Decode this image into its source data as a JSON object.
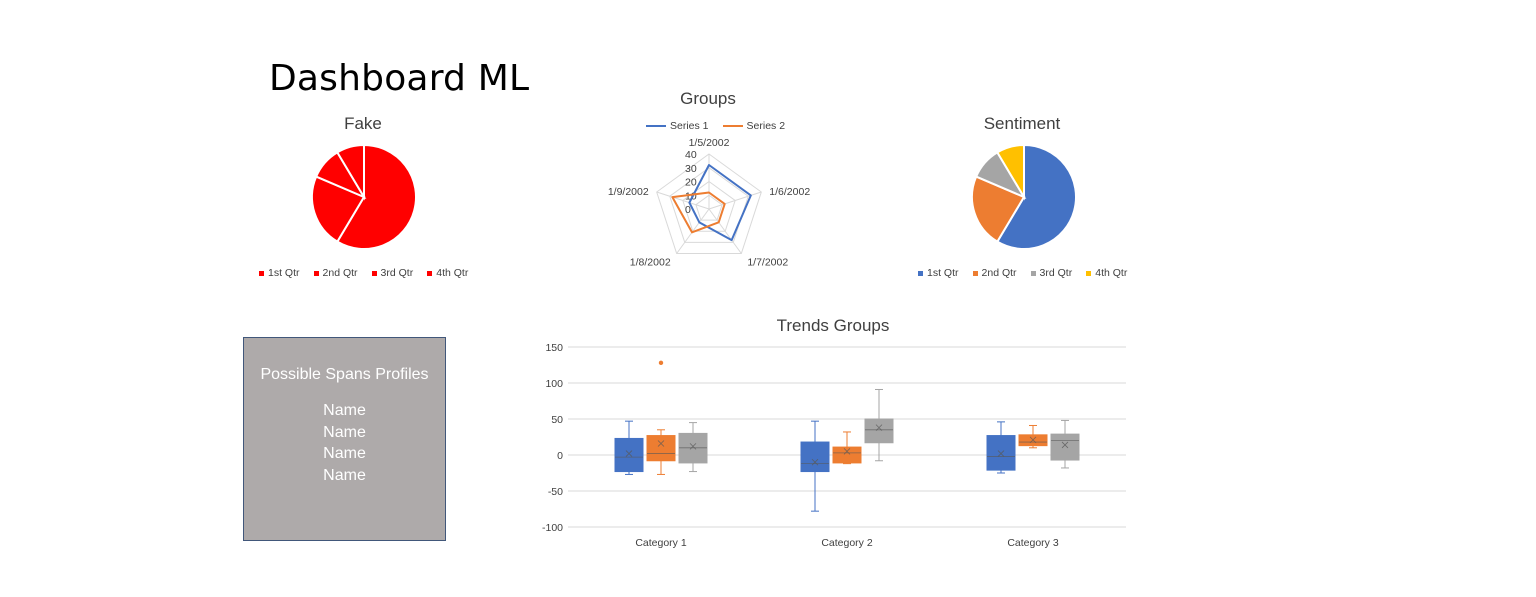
{
  "page": {
    "title": "Dashboard ML"
  },
  "profiles_panel": {
    "heading": "Possible Spans Profiles",
    "names": [
      "Name",
      "Name",
      "Name",
      "Name"
    ]
  },
  "colors": {
    "blue": "#4472c4",
    "orange": "#ed7d31",
    "gray": "#a5a5a5",
    "yellow": "#ffc000",
    "red": "#ff0000"
  },
  "chart_data": [
    {
      "id": "fake",
      "type": "pie",
      "title": "Fake",
      "categories": [
        "1st Qtr",
        "2nd Qtr",
        "3rd Qtr",
        "4th Qtr"
      ],
      "values": [
        8.2,
        3.2,
        1.4,
        1.2
      ],
      "colors": [
        "#ff0000",
        "#ff0000",
        "#ff0000",
        "#ff0000"
      ],
      "legend": "bottom"
    },
    {
      "id": "groups",
      "type": "radar",
      "title": "Groups",
      "categories": [
        "1/5/2002",
        "1/6/2002",
        "1/7/2002",
        "1/8/2002",
        "1/9/2002"
      ],
      "series": [
        {
          "name": "Series 1",
          "values": [
            32,
            32,
            28,
            12,
            15
          ],
          "color": "#4472c4"
        },
        {
          "name": "Series 2",
          "values": [
            12,
            12,
            12,
            21,
            28
          ],
          "color": "#ed7d31"
        }
      ],
      "axis_ticks": [
        "0",
        "10",
        "20",
        "30",
        "40"
      ],
      "rmax": 40,
      "legend": "top"
    },
    {
      "id": "sentiment",
      "type": "pie",
      "title": "Sentiment",
      "categories": [
        "1st Qtr",
        "2nd Qtr",
        "3rd Qtr",
        "4th Qtr"
      ],
      "values": [
        8.2,
        3.2,
        1.4,
        1.2
      ],
      "colors": [
        "#4472c4",
        "#ed7d31",
        "#a5a5a5",
        "#ffc000"
      ],
      "legend": "bottom"
    },
    {
      "id": "trends",
      "type": "box",
      "title": "Trends Groups",
      "categories": [
        "Category 1",
        "Category 2",
        "Category 3"
      ],
      "ylim": [
        -100,
        150
      ],
      "yticks": [
        "150",
        "100",
        "50",
        "0",
        "-50",
        "-100"
      ],
      "series": [
        {
          "color": "#4472c4",
          "boxes": [
            {
              "min": -27,
              "q1": -23,
              "median": -3,
              "q3": 23,
              "max": 47,
              "mean": 2,
              "outliers": []
            },
            {
              "min": -78,
              "q1": -23,
              "median": -12,
              "q3": 18,
              "max": 47,
              "mean": -10,
              "outliers": []
            },
            {
              "min": -25,
              "q1": -21,
              "median": -2,
              "q3": 27,
              "max": 46,
              "mean": 2,
              "outliers": []
            }
          ]
        },
        {
          "color": "#ed7d31",
          "boxes": [
            {
              "min": -27,
              "q1": -8,
              "median": 2,
              "q3": 27,
              "max": 35,
              "mean": 16,
              "outliers": [
                128
              ]
            },
            {
              "min": -12,
              "q1": -11,
              "median": 3,
              "q3": 11,
              "max": 32,
              "mean": 5,
              "outliers": []
            },
            {
              "min": 10,
              "q1": 13,
              "median": 18,
              "q3": 28,
              "max": 41,
              "mean": 21,
              "outliers": []
            }
          ]
        },
        {
          "color": "#a5a5a5",
          "boxes": [
            {
              "min": -23,
              "q1": -11,
              "median": 10,
              "q3": 30,
              "max": 45,
              "mean": 12,
              "outliers": []
            },
            {
              "min": -8,
              "q1": 17,
              "median": 35,
              "q3": 50,
              "max": 91,
              "mean": 38,
              "outliers": []
            },
            {
              "min": -18,
              "q1": -7,
              "median": 20,
              "q3": 29,
              "max": 48,
              "mean": 14,
              "outliers": []
            }
          ]
        }
      ],
      "grid": true
    }
  ]
}
